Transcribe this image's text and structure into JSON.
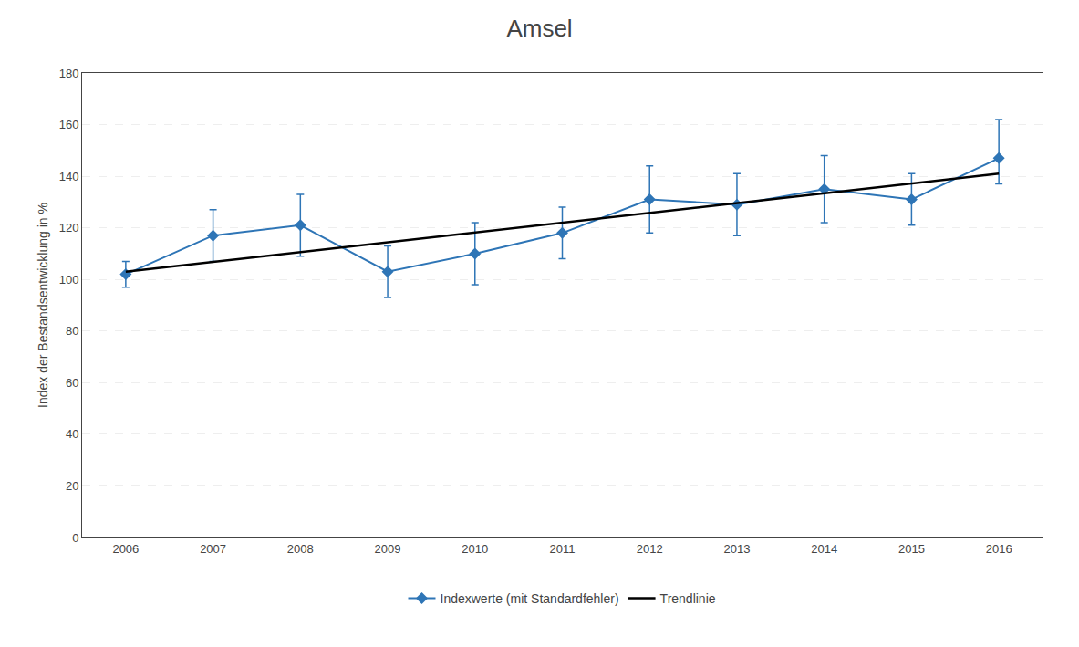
{
  "chart_data": {
    "type": "line",
    "title": "Amsel",
    "y_label": "Index der Bestandsentwicklung in %",
    "x": [
      2006,
      2007,
      2008,
      2009,
      2010,
      2011,
      2012,
      2013,
      2014,
      2015,
      2016
    ],
    "series": [
      {
        "name": "Indexwerte (mit Standardfehler)",
        "color": "#2E75B6",
        "marker": "diamond",
        "line_style": "solid",
        "values": [
          102,
          117,
          121,
          103,
          110,
          118,
          131,
          129,
          135,
          131,
          147
        ],
        "errors_upper": [
          5,
          10,
          12,
          10,
          12,
          10,
          13,
          12,
          13,
          10,
          15
        ],
        "errors_lower": [
          5,
          10,
          12,
          10,
          12,
          10,
          13,
          12,
          13,
          10,
          10
        ]
      },
      {
        "name": "Trendlinie",
        "color": "#000000",
        "line_style": "solid",
        "x": [
          2006,
          2016
        ],
        "values": [
          103,
          141
        ]
      }
    ],
    "xlim": [
      2005.5,
      2016.5
    ],
    "xticks": [
      2006,
      2007,
      2008,
      2009,
      2010,
      2011,
      2012,
      2013,
      2014,
      2015,
      2016
    ],
    "ylim": [
      0,
      180
    ],
    "yticks": [
      0,
      20,
      40,
      60,
      80,
      100,
      120,
      140,
      160,
      180
    ],
    "grid": "y",
    "legend": "bottom"
  }
}
